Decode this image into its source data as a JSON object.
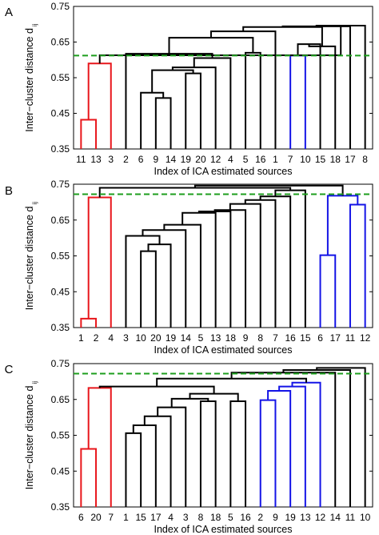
{
  "colors": {
    "red_cluster": "#e8161b",
    "blue_cluster": "#1414e6",
    "black_links": "#000000",
    "threshold_line": "#1e9e1e"
  },
  "y_axis_title": {
    "main": "Inter−cluster distance d",
    "subscript": "ij"
  },
  "chart_data": [
    {
      "type": "dendrogram",
      "panel_label": "A",
      "xlabel": "Index of ICA estimated sources",
      "ylim": [
        0.35,
        0.75
      ],
      "yticks": [
        "0.35",
        "0.45",
        "0.55",
        "0.65",
        "0.75"
      ],
      "threshold": 0.612,
      "leaves": [
        "11",
        "13",
        "3",
        "2",
        "6",
        "9",
        "14",
        "19",
        "20",
        "12",
        "4",
        "5",
        "16",
        "1",
        "7",
        "10",
        "15",
        "18",
        "17",
        "8"
      ],
      "merges": [
        {
          "a": {
            "l": 0
          },
          "b": {
            "l": 1
          },
          "h": 0.432,
          "color": "red"
        },
        {
          "a": {
            "m": 0
          },
          "b": {
            "l": 2
          },
          "h": 0.59,
          "color": "red"
        },
        {
          "a": {
            "l": 5
          },
          "b": {
            "l": 6
          },
          "h": 0.493
        },
        {
          "a": {
            "l": 4
          },
          "b": {
            "m": 2
          },
          "h": 0.508
        },
        {
          "a": {
            "l": 7
          },
          "b": {
            "l": 8
          },
          "h": 0.562
        },
        {
          "a": {
            "m": 3
          },
          "b": {
            "m": 4
          },
          "h": 0.571
        },
        {
          "a": {
            "m": 5
          },
          "b": {
            "l": 9
          },
          "h": 0.579
        },
        {
          "a": {
            "m": 6
          },
          "b": {
            "l": 10
          },
          "h": 0.605
        },
        {
          "a": {
            "l": 3
          },
          "b": {
            "m": 7
          },
          "h": 0.617
        },
        {
          "a": {
            "l": 14
          },
          "b": {
            "l": 15
          },
          "h": 0.612,
          "color": "blue"
        },
        {
          "a": {
            "m": 9
          },
          "b": {
            "l": 16
          },
          "h": 0.644
        },
        {
          "a": {
            "m": 10
          },
          "b": {
            "l": 17
          },
          "h": 0.638
        },
        {
          "a": {
            "l": 11
          },
          "b": {
            "l": 12
          },
          "h": 0.62
        },
        {
          "a": {
            "m": 8
          },
          "b": {
            "m": 12
          },
          "h": 0.662
        },
        {
          "a": {
            "m": 13
          },
          "b": {
            "l": 13
          },
          "h": 0.68
        },
        {
          "a": {
            "m": 14
          },
          "b": {
            "m": 11
          },
          "h": 0.692
        },
        {
          "a": {
            "m": 15
          },
          "b": {
            "l": 18
          },
          "h": 0.694
        },
        {
          "a": {
            "m": 16
          },
          "b": {
            "l": 19
          },
          "h": 0.696
        },
        {
          "a": {
            "m": 1
          },
          "b": {
            "m": 17
          },
          "h": 0.613
        }
      ]
    },
    {
      "type": "dendrogram",
      "panel_label": "B",
      "xlabel": "Index of ICA estimated sources",
      "ylim": [
        0.35,
        0.75
      ],
      "yticks": [
        "0.35",
        "0.45",
        "0.55",
        "0.65",
        "0.75"
      ],
      "threshold": 0.722,
      "leaves": [
        "1",
        "2",
        "4",
        "3",
        "10",
        "20",
        "19",
        "14",
        "5",
        "13",
        "18",
        "9",
        "8",
        "7",
        "16",
        "15",
        "6",
        "17",
        "11",
        "12"
      ],
      "merges": [
        {
          "a": {
            "l": 0
          },
          "b": {
            "l": 1
          },
          "h": 0.375,
          "color": "red"
        },
        {
          "a": {
            "m": 0
          },
          "b": {
            "l": 2
          },
          "h": 0.713,
          "color": "red"
        },
        {
          "a": {
            "l": 4
          },
          "b": {
            "l": 5
          },
          "h": 0.563
        },
        {
          "a": {
            "m": 2
          },
          "b": {
            "l": 6
          },
          "h": 0.582
        },
        {
          "a": {
            "l": 3
          },
          "b": {
            "m": 3
          },
          "h": 0.606
        },
        {
          "a": {
            "m": 4
          },
          "b": {
            "l": 7
          },
          "h": 0.622
        },
        {
          "a": {
            "m": 5
          },
          "b": {
            "l": 8
          },
          "h": 0.637
        },
        {
          "a": {
            "m": 6
          },
          "b": {
            "l": 9
          },
          "h": 0.67
        },
        {
          "a": {
            "m": 7
          },
          "b": {
            "l": 10
          },
          "h": 0.674
        },
        {
          "a": {
            "m": 8
          },
          "b": {
            "l": 11
          },
          "h": 0.678
        },
        {
          "a": {
            "m": 9
          },
          "b": {
            "l": 12
          },
          "h": 0.695
        },
        {
          "a": {
            "m": 10
          },
          "b": {
            "l": 13
          },
          "h": 0.706
        },
        {
          "a": {
            "m": 11
          },
          "b": {
            "l": 14
          },
          "h": 0.716
        },
        {
          "a": {
            "l": 16
          },
          "b": {
            "l": 17
          },
          "h": 0.552,
          "color": "blue"
        },
        {
          "a": {
            "l": 18
          },
          "b": {
            "l": 19
          },
          "h": 0.693,
          "color": "blue"
        },
        {
          "a": {
            "m": 13
          },
          "b": {
            "m": 14
          },
          "h": 0.718,
          "color": "blue"
        },
        {
          "a": {
            "m": 12
          },
          "b": {
            "l": 15
          },
          "h": 0.733
        },
        {
          "a": {
            "m": 1
          },
          "b": {
            "m": 16
          },
          "h": 0.74
        },
        {
          "a": {
            "m": 17
          },
          "b": {
            "m": 15
          },
          "h": 0.746
        }
      ]
    },
    {
      "type": "dendrogram",
      "panel_label": "C",
      "xlabel": "Index of ICA estimated sources",
      "ylim": [
        0.35,
        0.75
      ],
      "yticks": [
        "0.35",
        "0.45",
        "0.55",
        "0.65",
        "0.75"
      ],
      "threshold": 0.722,
      "leaves": [
        "6",
        "20",
        "7",
        "1",
        "15",
        "17",
        "4",
        "3",
        "8",
        "18",
        "5",
        "16",
        "2",
        "9",
        "19",
        "13",
        "12",
        "14",
        "11",
        "10"
      ],
      "merges": [
        {
          "a": {
            "l": 0
          },
          "b": {
            "l": 1
          },
          "h": 0.512,
          "color": "red"
        },
        {
          "a": {
            "m": 0
          },
          "b": {
            "l": 2
          },
          "h": 0.682,
          "color": "red"
        },
        {
          "a": {
            "l": 3
          },
          "b": {
            "l": 4
          },
          "h": 0.556
        },
        {
          "a": {
            "m": 2
          },
          "b": {
            "l": 5
          },
          "h": 0.578
        },
        {
          "a": {
            "m": 3
          },
          "b": {
            "l": 6
          },
          "h": 0.603
        },
        {
          "a": {
            "m": 4
          },
          "b": {
            "l": 7
          },
          "h": 0.628
        },
        {
          "a": {
            "l": 8
          },
          "b": {
            "l": 9
          },
          "h": 0.645
        },
        {
          "a": {
            "m": 5
          },
          "b": {
            "m": 6
          },
          "h": 0.652
        },
        {
          "a": {
            "l": 10
          },
          "b": {
            "l": 11
          },
          "h": 0.645
        },
        {
          "a": {
            "m": 7
          },
          "b": {
            "m": 8
          },
          "h": 0.666
        },
        {
          "a": {
            "m": 9
          },
          "b": {
            "m": 1
          },
          "h": 0.686
        },
        {
          "a": {
            "l": 12
          },
          "b": {
            "l": 13
          },
          "h": 0.648,
          "color": "blue"
        },
        {
          "a": {
            "m": 11
          },
          "b": {
            "l": 14
          },
          "h": 0.674,
          "color": "blue"
        },
        {
          "a": {
            "m": 12
          },
          "b": {
            "l": 15
          },
          "h": 0.686,
          "color": "blue"
        },
        {
          "a": {
            "m": 13
          },
          "b": {
            "l": 16
          },
          "h": 0.697,
          "color": "blue"
        },
        {
          "a": {
            "m": 10
          },
          "b": {
            "m": 14
          },
          "h": 0.708
        },
        {
          "a": {
            "m": 15
          },
          "b": {
            "l": 17
          },
          "h": 0.725
        },
        {
          "a": {
            "m": 16
          },
          "b": {
            "l": 18
          },
          "h": 0.732
        },
        {
          "a": {
            "m": 17
          },
          "b": {
            "l": 19
          },
          "h": 0.738
        }
      ]
    }
  ]
}
